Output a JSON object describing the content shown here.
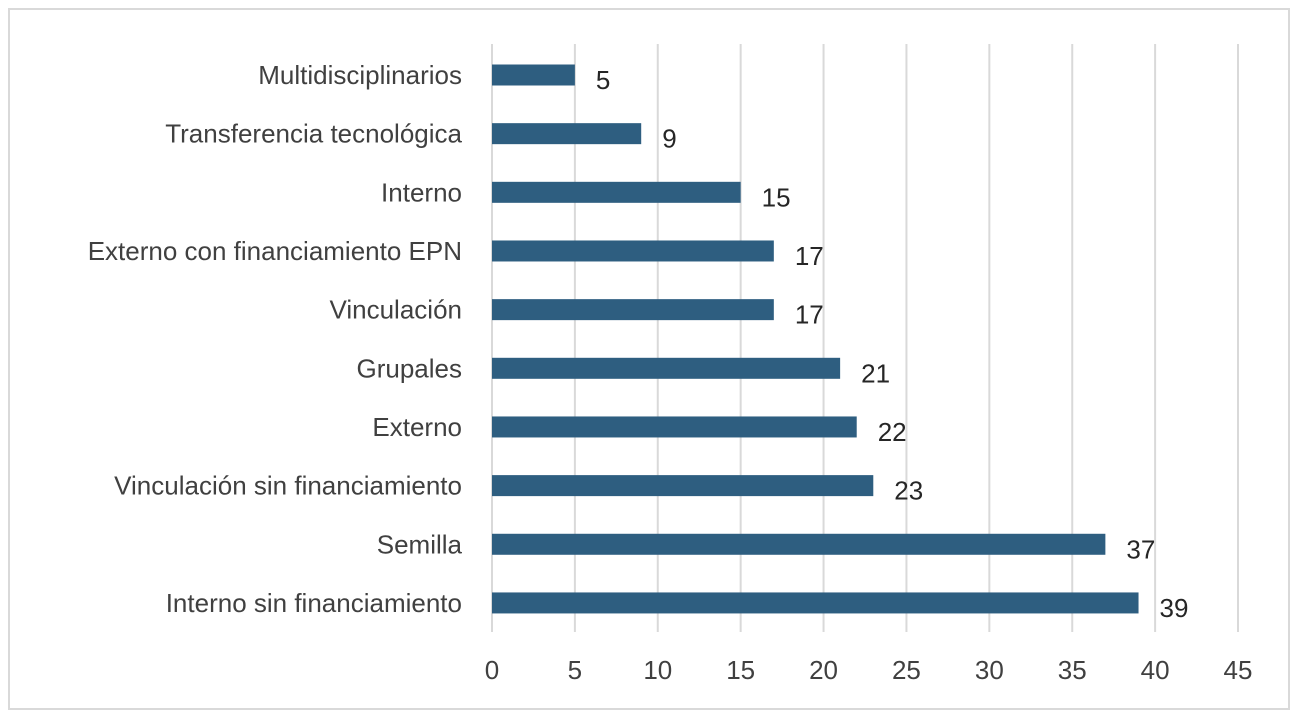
{
  "chart_data": {
    "type": "bar",
    "orientation": "horizontal",
    "categories": [
      "Multidisciplinarios",
      "Transferencia tecnológica",
      "Interno",
      "Externo con financiamiento EPN",
      "Vinculación",
      "Grupales",
      "Externo",
      "Vinculación sin financiamiento",
      "Semilla",
      "Interno sin financiamiento"
    ],
    "values": [
      5,
      9,
      15,
      17,
      17,
      21,
      22,
      23,
      37,
      39
    ],
    "xlim": [
      0,
      45
    ],
    "xticks": [
      0,
      5,
      10,
      15,
      20,
      25,
      30,
      35,
      40,
      45
    ],
    "grid": "vertical",
    "data_labels": true,
    "title": "",
    "xlabel": "",
    "ylabel": "",
    "colors": {
      "bar": "#2e5e80",
      "grid": "#d9d9d9",
      "text": "#404040",
      "border": "#d9d9d9"
    }
  }
}
